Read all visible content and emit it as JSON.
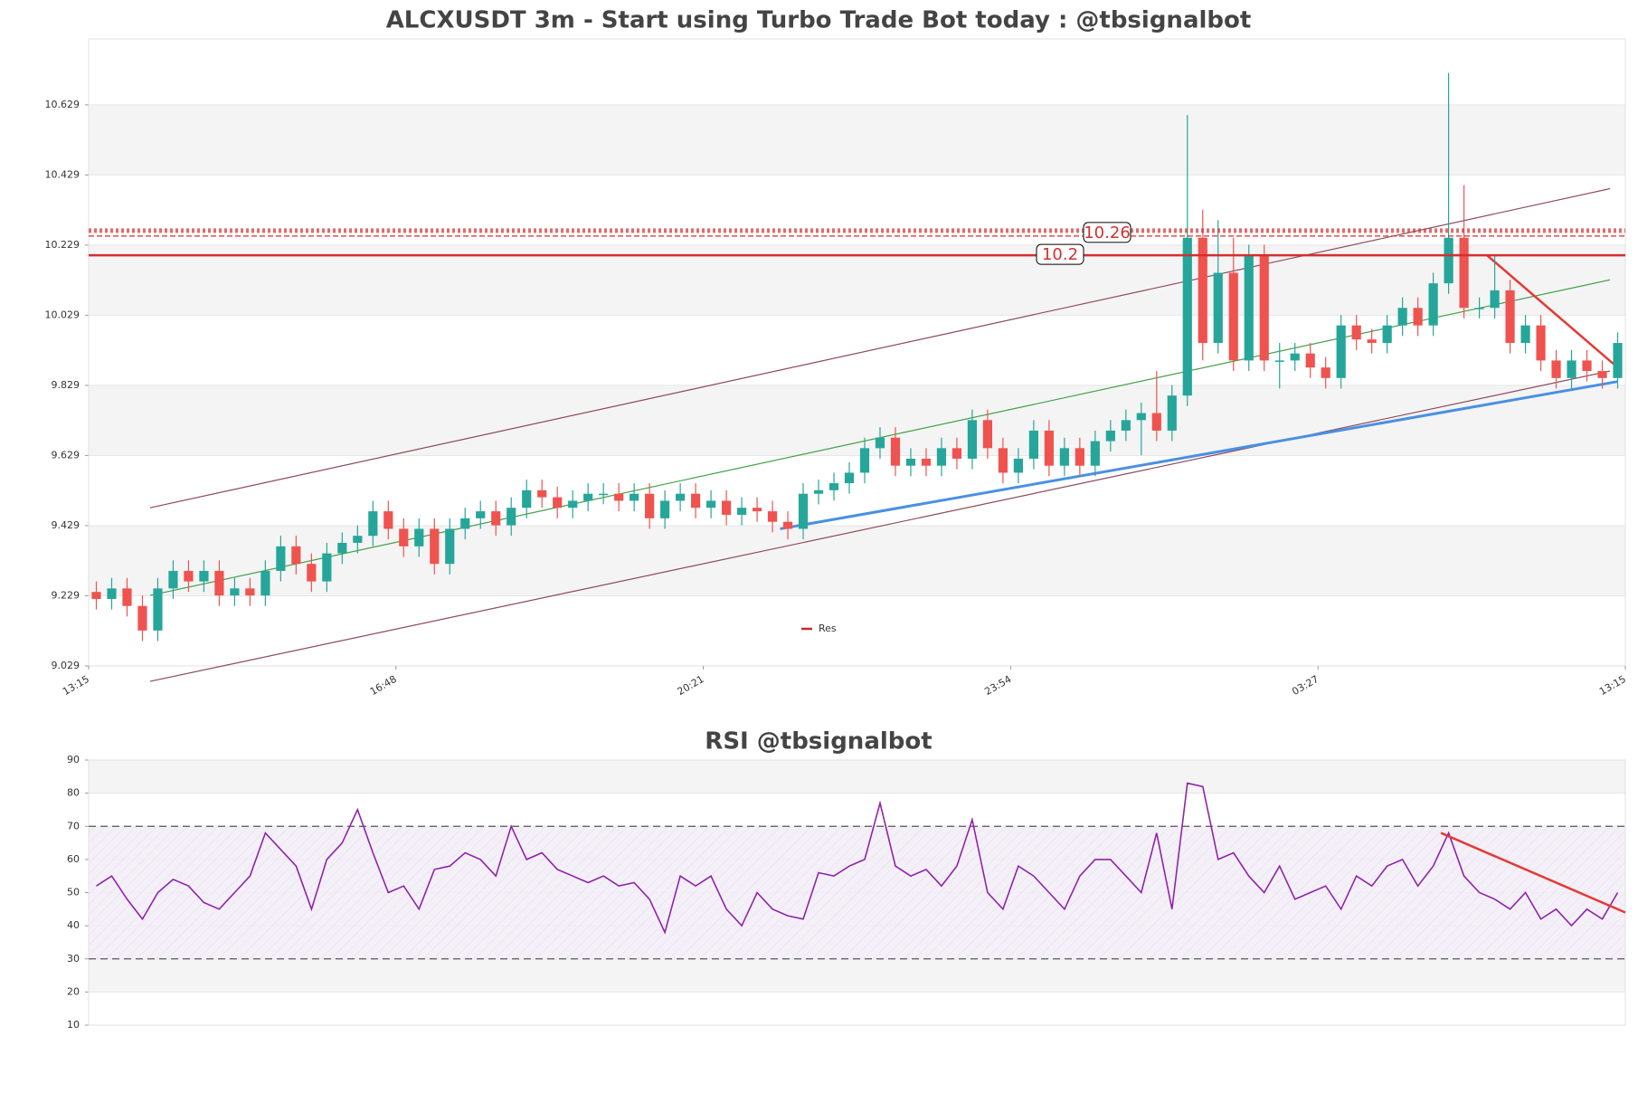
{
  "chart_data": [
    {
      "type": "candlestick",
      "title": "ALCXUSDT 3m - Start using Turbo Trade Bot today : @tbsignalbot",
      "x": [
        0.5,
        1.5,
        2.5,
        3.5,
        4.5,
        5.5,
        6.5,
        7.5,
        8.5,
        9.5,
        10.5,
        11.5,
        12.5,
        13.5,
        14.5,
        15.5,
        16.5,
        17.5,
        18.5,
        19.5,
        20.5,
        21.5,
        22.5,
        23.5,
        24.5,
        25.5,
        26.5,
        27.5,
        28.5,
        29.5,
        30.5,
        31.5,
        32.5,
        33.5,
        34.5,
        35.5,
        36.5,
        37.5,
        38.5,
        39.5,
        40.5,
        41.5,
        42.5,
        43.5,
        44.5,
        45.5,
        46.5,
        47.5,
        48.5,
        49.5,
        50.5,
        51.5,
        52.5,
        53.5,
        54.5,
        55.5,
        56.5,
        57.5,
        58.5,
        59.5,
        60.5,
        61.5,
        62.5,
        63.5,
        64.5,
        65.5,
        66.5,
        67.5,
        68.5,
        69.5,
        70.5,
        71.5,
        72.5,
        73.5,
        74.5,
        75.5,
        76.5,
        77.5,
        78.5,
        79.5,
        80.5,
        81.5,
        82.5,
        83.5,
        84.5,
        85.5,
        86.5,
        87.5,
        88.5,
        89.5,
        90.5,
        91.5,
        92.5,
        93.5,
        94.5,
        95.5,
        96.5,
        97.5,
        98.5,
        99.5
      ],
      "open": [
        9.24,
        9.22,
        9.25,
        9.2,
        9.13,
        9.25,
        9.3,
        9.27,
        9.3,
        9.23,
        9.25,
        9.23,
        9.3,
        9.37,
        9.32,
        9.27,
        9.35,
        9.38,
        9.4,
        9.47,
        9.42,
        9.37,
        9.42,
        9.32,
        9.42,
        9.45,
        9.47,
        9.43,
        9.48,
        9.53,
        9.51,
        9.48,
        9.5,
        9.52,
        9.52,
        9.5,
        9.52,
        9.45,
        9.5,
        9.52,
        9.48,
        9.5,
        9.46,
        9.48,
        9.47,
        9.44,
        9.42,
        9.52,
        9.53,
        9.55,
        9.58,
        9.65,
        9.68,
        9.6,
        9.62,
        9.6,
        9.65,
        9.62,
        9.73,
        9.65,
        9.58,
        9.62,
        9.7,
        9.6,
        9.65,
        9.6,
        9.67,
        9.7,
        9.73,
        9.75,
        9.7,
        9.8,
        10.25,
        9.95,
        10.15,
        9.9,
        10.2,
        9.9,
        9.9,
        9.92,
        9.88,
        9.85,
        10.0,
        9.96,
        9.95,
        10.0,
        10.05,
        10.0,
        10.12,
        10.25,
        10.05,
        10.05,
        10.1,
        9.95,
        10.0,
        9.9,
        9.85,
        9.9,
        9.87,
        9.85
      ],
      "high": [
        9.27,
        9.28,
        9.28,
        9.23,
        9.28,
        9.33,
        9.33,
        9.33,
        9.33,
        9.28,
        9.28,
        9.33,
        9.4,
        9.4,
        9.35,
        9.38,
        9.41,
        9.43,
        9.5,
        9.5,
        9.45,
        9.45,
        9.45,
        9.45,
        9.48,
        9.5,
        9.5,
        9.51,
        9.56,
        9.56,
        9.54,
        9.53,
        9.55,
        9.55,
        9.55,
        9.55,
        9.55,
        9.53,
        9.55,
        9.55,
        9.53,
        9.53,
        9.51,
        9.51,
        9.5,
        9.47,
        9.55,
        9.56,
        9.58,
        9.61,
        9.68,
        9.71,
        9.71,
        9.65,
        9.65,
        9.68,
        9.68,
        9.76,
        9.76,
        9.68,
        9.65,
        9.73,
        9.73,
        9.68,
        9.68,
        9.7,
        9.73,
        9.76,
        9.78,
        9.87,
        9.83,
        10.6,
        10.33,
        10.3,
        10.25,
        10.23,
        10.23,
        9.95,
        9.95,
        9.95,
        9.91,
        10.03,
        10.03,
        9.99,
        10.03,
        10.08,
        10.08,
        10.15,
        10.72,
        10.4,
        10.08,
        10.2,
        10.13,
        10.03,
        10.03,
        9.93,
        9.93,
        9.93,
        9.9,
        9.98
      ],
      "low": [
        9.19,
        9.19,
        9.17,
        9.1,
        9.1,
        9.22,
        9.24,
        9.24,
        9.2,
        9.2,
        9.2,
        9.2,
        9.27,
        9.29,
        9.24,
        9.24,
        9.32,
        9.35,
        9.37,
        9.39,
        9.34,
        9.34,
        9.29,
        9.29,
        9.39,
        9.42,
        9.4,
        9.4,
        9.45,
        9.48,
        9.45,
        9.45,
        9.47,
        9.49,
        9.47,
        9.47,
        9.42,
        9.42,
        9.47,
        9.45,
        9.45,
        9.43,
        9.43,
        9.44,
        9.41,
        9.39,
        9.39,
        9.49,
        9.5,
        9.52,
        9.55,
        9.62,
        9.57,
        9.57,
        9.57,
        9.57,
        9.59,
        9.59,
        9.62,
        9.55,
        9.55,
        9.59,
        9.57,
        9.57,
        9.57,
        9.57,
        9.64,
        9.67,
        9.63,
        9.67,
        9.67,
        9.77,
        9.9,
        9.92,
        9.87,
        9.87,
        9.87,
        9.82,
        9.87,
        9.85,
        9.82,
        9.82,
        9.93,
        9.92,
        9.92,
        9.97,
        9.97,
        9.97,
        10.09,
        10.02,
        10.02,
        10.02,
        9.92,
        9.92,
        9.87,
        9.82,
        9.82,
        9.84,
        9.82,
        9.82
      ],
      "close": [
        9.22,
        9.25,
        9.2,
        9.13,
        9.25,
        9.3,
        9.27,
        9.3,
        9.23,
        9.25,
        9.23,
        9.3,
        9.37,
        9.32,
        9.27,
        9.35,
        9.38,
        9.4,
        9.47,
        9.42,
        9.37,
        9.42,
        9.32,
        9.42,
        9.45,
        9.47,
        9.43,
        9.48,
        9.53,
        9.51,
        9.48,
        9.5,
        9.52,
        9.52,
        9.5,
        9.52,
        9.45,
        9.5,
        9.52,
        9.48,
        9.5,
        9.46,
        9.48,
        9.47,
        9.44,
        9.42,
        9.52,
        9.53,
        9.55,
        9.58,
        9.65,
        9.68,
        9.6,
        9.62,
        9.6,
        9.65,
        9.62,
        9.73,
        9.65,
        9.58,
        9.62,
        9.7,
        9.6,
        9.65,
        9.6,
        9.67,
        9.7,
        9.73,
        9.75,
        9.7,
        9.8,
        10.25,
        9.95,
        10.15,
        9.9,
        10.2,
        9.9,
        9.9,
        9.92,
        9.88,
        9.85,
        10.0,
        9.96,
        9.95,
        10.0,
        10.05,
        10.0,
        10.12,
        10.25,
        10.05,
        10.05,
        10.1,
        9.95,
        10.0,
        9.9,
        9.85,
        9.9,
        9.87,
        9.85,
        9.95
      ],
      "up_color": "#26a69a",
      "down_color": "#ef5350",
      "xlim": [
        0,
        100
      ],
      "xticks": [
        {
          "value": 0,
          "label": "13:15"
        },
        {
          "value": 20,
          "label": "16:48"
        },
        {
          "value": 40,
          "label": "20:21"
        },
        {
          "value": 60,
          "label": "23:54"
        },
        {
          "value": 80,
          "label": "03:27"
        },
        {
          "value": 100,
          "label": "13:15"
        }
      ],
      "ylim": [
        9.029,
        10.817
      ],
      "yticks": [
        9.029,
        9.229,
        9.429,
        9.629,
        9.829,
        10.029,
        10.229,
        10.429,
        10.629
      ],
      "levels": [
        {
          "value": 10.26,
          "style": "dashed"
        },
        {
          "value": 10.2,
          "style": "solid"
        }
      ],
      "level_color": "#d32f2f",
      "legend": {
        "name": "Res",
        "color": "#c62828"
      },
      "trendlines": [
        {
          "x": [
            4,
            99
          ],
          "y": [
            9.48,
            10.39
          ],
          "color": "#8d4a5a",
          "width": 1.2
        },
        {
          "x": [
            4,
            99
          ],
          "y": [
            8.985,
            9.87
          ],
          "color": "#8d4a5a",
          "width": 1.2
        },
        {
          "x": [
            4,
            99
          ],
          "y": [
            9.23,
            10.13
          ],
          "color": "#43a047",
          "width": 1.2
        },
        {
          "x": [
            45,
            99.5
          ],
          "y": [
            9.42,
            9.84
          ],
          "color": "#4a90e2",
          "width": 3
        },
        {
          "x": [
            91,
            99.5
          ],
          "y": [
            10.2,
            9.88
          ],
          "color": "#e53935",
          "width": 2.5
        }
      ]
    },
    {
      "type": "line",
      "title": "RSI @tbsignalbot",
      "x": [
        0.5,
        1.5,
        2.5,
        3.5,
        4.5,
        5.5,
        6.5,
        7.5,
        8.5,
        9.5,
        10.5,
        11.5,
        12.5,
        13.5,
        14.5,
        15.5,
        16.5,
        17.5,
        18.5,
        19.5,
        20.5,
        21.5,
        22.5,
        23.5,
        24.5,
        25.5,
        26.5,
        27.5,
        28.5,
        29.5,
        30.5,
        31.5,
        32.5,
        33.5,
        34.5,
        35.5,
        36.5,
        37.5,
        38.5,
        39.5,
        40.5,
        41.5,
        42.5,
        43.5,
        44.5,
        45.5,
        46.5,
        47.5,
        48.5,
        49.5,
        50.5,
        51.5,
        52.5,
        53.5,
        54.5,
        55.5,
        56.5,
        57.5,
        58.5,
        59.5,
        60.5,
        61.5,
        62.5,
        63.5,
        64.5,
        65.5,
        66.5,
        67.5,
        68.5,
        69.5,
        70.5,
        71.5,
        72.5,
        73.5,
        74.5,
        75.5,
        76.5,
        77.5,
        78.5,
        79.5,
        80.5,
        81.5,
        82.5,
        83.5,
        84.5,
        85.5,
        86.5,
        87.5,
        88.5,
        89.5,
        90.5,
        91.5,
        92.5,
        93.5,
        94.5,
        95.5,
        96.5,
        97.5,
        98.5,
        99.5
      ],
      "values": [
        52,
        55,
        48,
        42,
        50,
        54,
        52,
        47,
        45,
        50,
        55,
        68,
        63,
        58,
        45,
        60,
        65,
        75,
        62,
        50,
        52,
        45,
        57,
        58,
        62,
        60,
        55,
        70,
        60,
        62,
        57,
        55,
        53,
        55,
        52,
        53,
        48,
        38,
        55,
        52,
        55,
        45,
        40,
        50,
        45,
        43,
        42,
        56,
        55,
        58,
        60,
        77,
        58,
        55,
        57,
        52,
        58,
        72,
        50,
        45,
        58,
        55,
        50,
        45,
        55,
        60,
        60,
        55,
        50,
        68,
        45,
        83,
        82,
        60,
        62,
        55,
        50,
        58,
        48,
        50,
        52,
        45,
        55,
        52,
        58,
        60,
        52,
        58,
        68,
        55,
        50,
        48,
        45,
        50,
        42,
        45,
        40,
        45,
        42,
        50
      ],
      "color": "#8e24aa",
      "xlim": [
        0,
        100
      ],
      "ylim": [
        10,
        90
      ],
      "yticks": [
        10,
        20,
        30,
        40,
        50,
        60,
        70,
        80,
        90
      ],
      "hlines": [
        70,
        30
      ],
      "trendlines": [
        {
          "x": [
            88,
            100
          ],
          "y": [
            68,
            44
          ],
          "color": "#e53935",
          "width": 2.5
        }
      ]
    }
  ]
}
